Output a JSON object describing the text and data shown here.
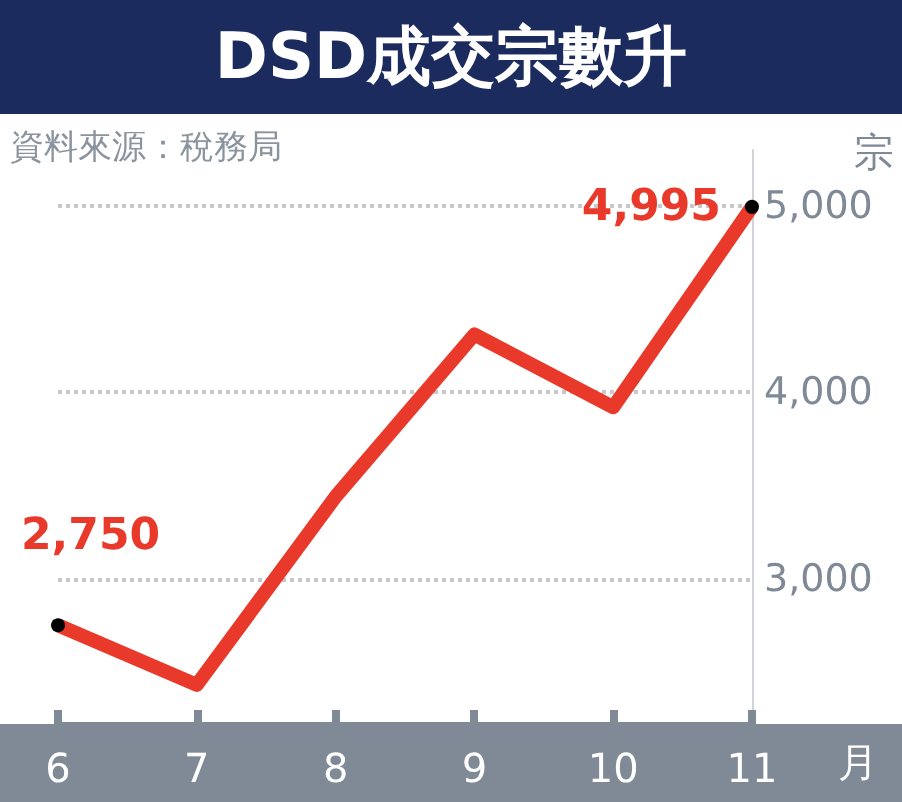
{
  "chart_data": {
    "type": "line",
    "title": "DSD成交宗數升",
    "annotations": [
      "資料來源：稅務局"
    ],
    "ylabel": "宗",
    "xlabel": "月",
    "categories": [
      "6",
      "7",
      "8",
      "9",
      "10",
      "11"
    ],
    "series": [
      {
        "color": "#e8392a",
        "values": [
          2750,
          2430,
          3440,
          4310,
          3920,
          4995
        ],
        "value_labels": [
          "2,750",
          null,
          null,
          null,
          null,
          "4,995"
        ]
      }
    ],
    "ylim": [
      2220,
      5300
    ],
    "yticks": [
      {
        "value": 3000,
        "label": "3,000"
      },
      {
        "value": 4000,
        "label": "4,000"
      },
      {
        "value": 5000,
        "label": "5,000"
      }
    ],
    "grid": "y"
  }
}
